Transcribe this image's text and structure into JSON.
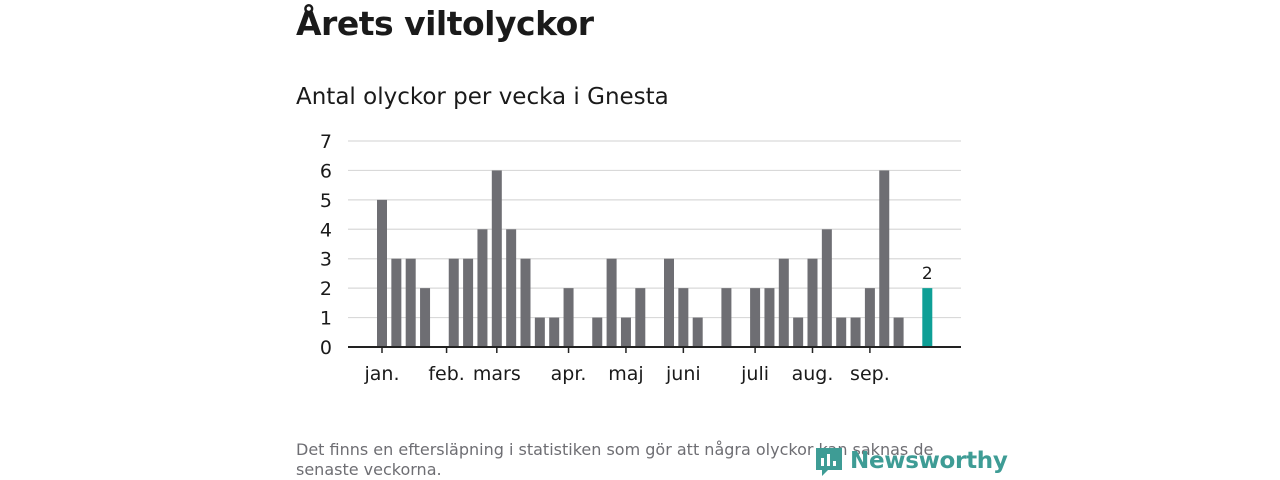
{
  "title": "Årets viltolyckor",
  "colors": {
    "bar": "#6e6e73",
    "highlight": "#0e9f96",
    "grid": "#d9d9d9",
    "axis": "#222222",
    "brand": "#3e9c95"
  },
  "chart_data": {
    "type": "bar",
    "title": "Antal olyckor per vecka i Gnesta",
    "xlabel": "",
    "ylabel": "",
    "ylim": [
      0,
      7
    ],
    "yticks": [
      0,
      1,
      2,
      3,
      4,
      5,
      6,
      7
    ],
    "grid": true,
    "weeks": [
      1,
      2,
      3,
      4,
      5,
      6,
      7,
      8,
      9,
      10,
      11,
      12,
      13,
      14,
      15,
      16,
      17,
      18,
      19,
      20,
      21,
      22,
      23,
      24,
      25,
      26,
      27,
      28,
      29,
      30,
      31,
      32,
      33,
      34,
      35,
      36,
      37,
      38,
      39,
      40
    ],
    "values": [
      5,
      3,
      3,
      2,
      0,
      3,
      3,
      4,
      6,
      4,
      3,
      1,
      1,
      2,
      0,
      1,
      3,
      1,
      2,
      0,
      3,
      2,
      1,
      0,
      2,
      0,
      2,
      2,
      3,
      1,
      3,
      4,
      1,
      1,
      2,
      6,
      1,
      0,
      2,
      null
    ],
    "highlight_week": 39,
    "highlight_label": "2",
    "month_labels": [
      {
        "label": "jan.",
        "week": 1
      },
      {
        "label": "feb.",
        "week": 5.5
      },
      {
        "label": "mars",
        "week": 9
      },
      {
        "label": "apr.",
        "week": 14
      },
      {
        "label": "maj",
        "week": 18
      },
      {
        "label": "juni",
        "week": 22
      },
      {
        "label": "juli",
        "week": 27
      },
      {
        "label": "aug.",
        "week": 31
      },
      {
        "label": "sep.",
        "week": 35
      }
    ]
  },
  "footnote": "Det finns en eftersläpning i statistiken som gör att några olyckor kan saknas de senaste veckorna.",
  "brand": {
    "name": "Newsworthy",
    "icon": "newsworthy-logo-icon"
  }
}
